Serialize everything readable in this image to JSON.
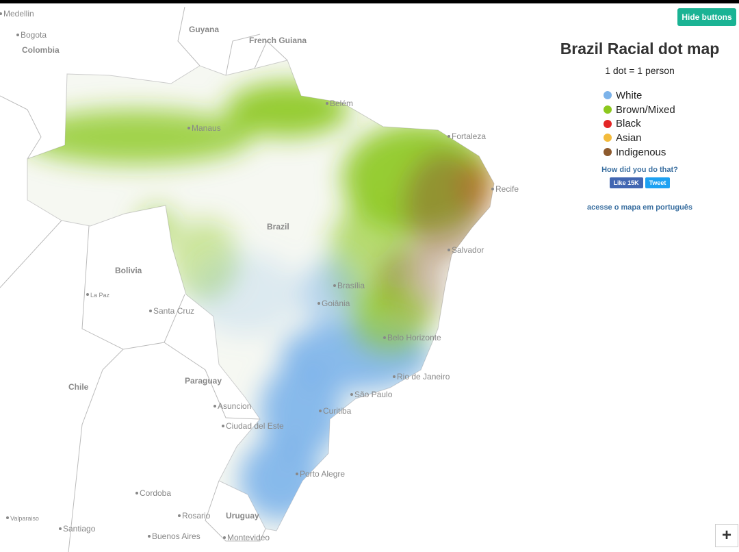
{
  "header": {
    "title": "Brazil Racial dot map",
    "subtitle": "1 dot = 1 person"
  },
  "buttons": {
    "hide": "Hide buttons",
    "zoom_in": "+"
  },
  "legend": [
    {
      "label": "White",
      "color": "#7cb3ea"
    },
    {
      "label": "Brown/Mixed",
      "color": "#8cc81e"
    },
    {
      "label": "Black",
      "color": "#e32626"
    },
    {
      "label": "Asian",
      "color": "#f3bb3c"
    },
    {
      "label": "Indigenous",
      "color": "#8d5a2e"
    }
  ],
  "links": {
    "how": "How did you do that?",
    "like": "Like 15K",
    "tweet": "Tweet",
    "portuguese": "acesse o mapa em português"
  },
  "places": [
    {
      "name": "Medellin",
      "kind": "city"
    },
    {
      "name": "Bogota",
      "kind": "city"
    },
    {
      "name": "Colombia",
      "kind": "country"
    },
    {
      "name": "Guyana",
      "kind": "country"
    },
    {
      "name": "French Guiana",
      "kind": "country"
    },
    {
      "name": "Belém",
      "kind": "city"
    },
    {
      "name": "Manaus",
      "kind": "city"
    },
    {
      "name": "Fortaleza",
      "kind": "city"
    },
    {
      "name": "Recife",
      "kind": "city"
    },
    {
      "name": "Brazil",
      "kind": "country"
    },
    {
      "name": "Bolivia",
      "kind": "country"
    },
    {
      "name": "La Paz",
      "kind": "small"
    },
    {
      "name": "Santa Cruz",
      "kind": "city"
    },
    {
      "name": "Salvador",
      "kind": "city"
    },
    {
      "name": "Brasília",
      "kind": "city"
    },
    {
      "name": "Goiânia",
      "kind": "city"
    },
    {
      "name": "Belo Horizonte",
      "kind": "city"
    },
    {
      "name": "Rio de Janeiro",
      "kind": "city"
    },
    {
      "name": "São Paulo",
      "kind": "city"
    },
    {
      "name": "Curitiba",
      "kind": "city"
    },
    {
      "name": "Paraguay",
      "kind": "country"
    },
    {
      "name": "Asuncion",
      "kind": "city"
    },
    {
      "name": "Ciudad del Este",
      "kind": "city"
    },
    {
      "name": "Chile",
      "kind": "country"
    },
    {
      "name": "Porto Alegre",
      "kind": "city"
    },
    {
      "name": "Cordoba",
      "kind": "city"
    },
    {
      "name": "Rosario",
      "kind": "city"
    },
    {
      "name": "Uruguay",
      "kind": "country"
    },
    {
      "name": "Buenos Aires",
      "kind": "city"
    },
    {
      "name": "Montevideo",
      "kind": "city"
    },
    {
      "name": "Santiago",
      "kind": "city"
    },
    {
      "name": "Valparaiso",
      "kind": "small"
    }
  ]
}
